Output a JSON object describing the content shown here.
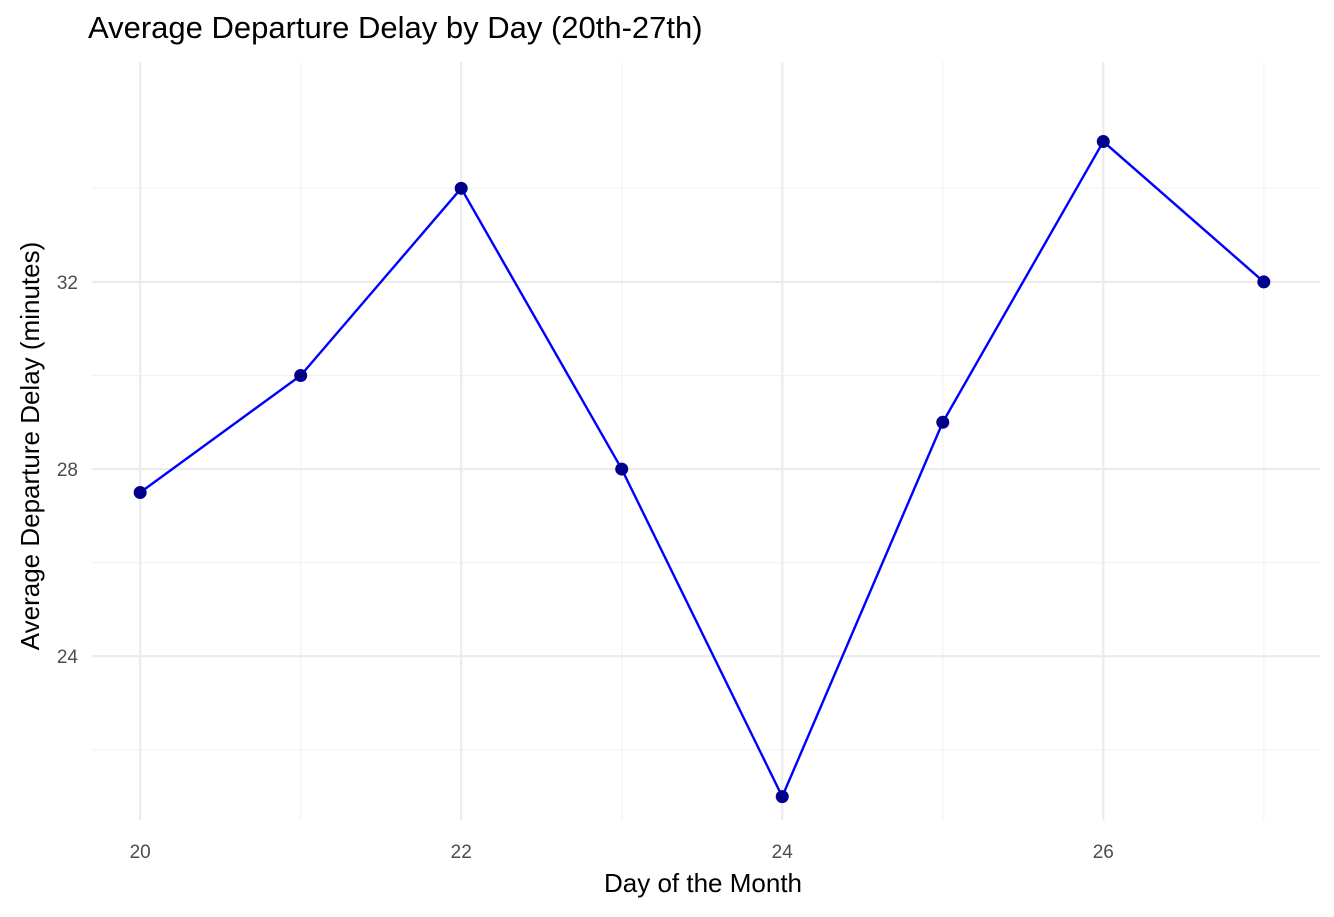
{
  "chart_data": {
    "type": "line",
    "title": "Average Departure Delay by Day (20th-27th)",
    "xlabel": "Day of the Month",
    "ylabel": "Average Departure Delay (minutes)",
    "x": [
      20,
      21,
      22,
      23,
      24,
      25,
      26,
      27
    ],
    "series": [
      {
        "values": [
          27.5,
          30.0,
          34.0,
          28.0,
          21.0,
          29.0,
          35.0,
          32.0
        ]
      }
    ],
    "x_ticks": [
      20,
      22,
      24,
      26
    ],
    "x_tick_labels": [
      "20",
      "22",
      "24",
      "26"
    ],
    "y_ticks": [
      24,
      28,
      32
    ],
    "y_tick_labels": [
      "24",
      "28",
      "32"
    ],
    "xlim": [
      19.7,
      27.35
    ],
    "ylim": [
      20.5,
      36.7
    ],
    "grid": true,
    "legend": "none",
    "colors": {
      "line": "#0000ff",
      "point": "#00008b",
      "grid_major": "#ebebeb",
      "grid_minor": "#f2f2f2",
      "tick_text": "#4d4d4d",
      "text": "#000000"
    }
  }
}
